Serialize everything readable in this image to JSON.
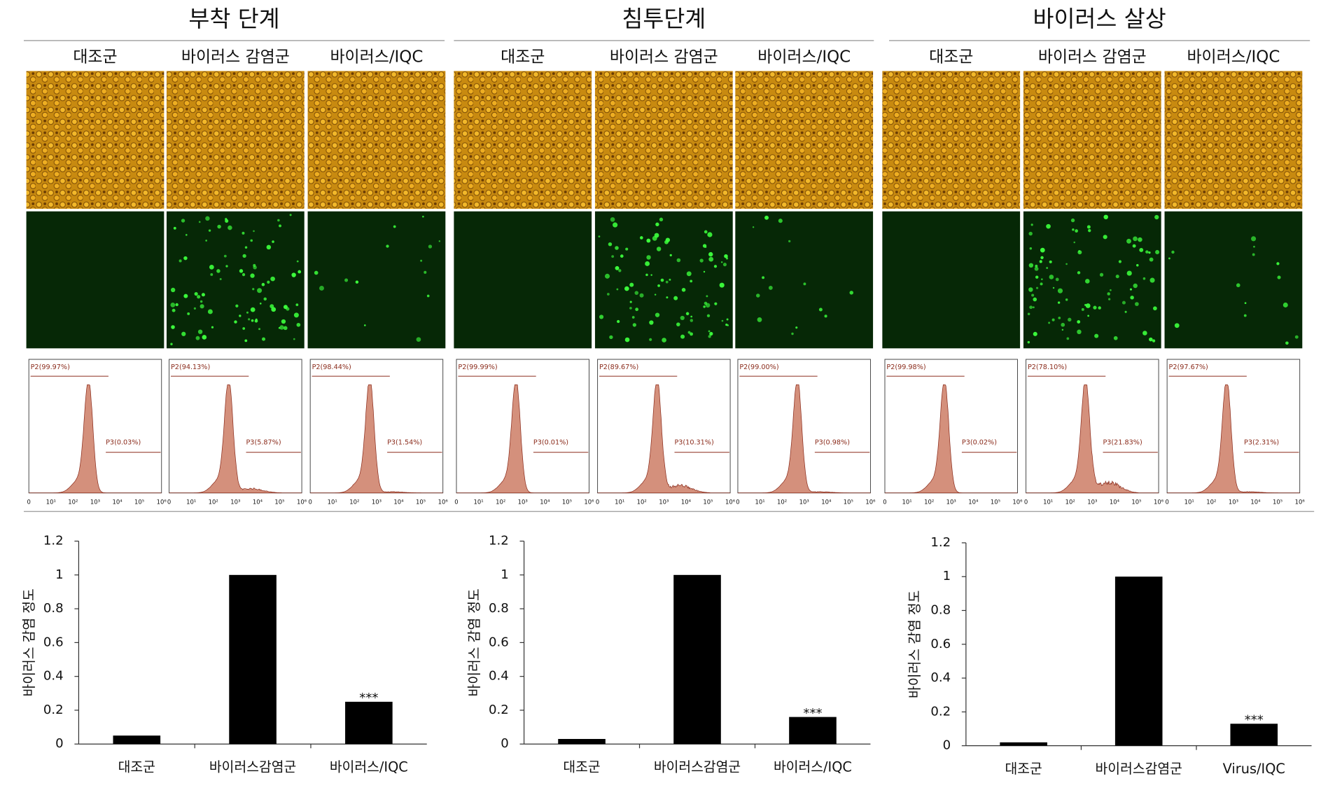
{
  "panels": [
    {
      "title": "부착 단계",
      "columns": [
        "대조군",
        "바이러스 감염군",
        "바이러스/IQC"
      ],
      "flow": [
        {
          "p2": "P2(99.97%)",
          "p3": "P3(0.03%)"
        },
        {
          "p2": "P2(94.13%)",
          "p3": "P3(5.87%)"
        },
        {
          "p2": "P2(98.44%)",
          "p3": "P3(1.54%)"
        }
      ]
    },
    {
      "title": "침투단계",
      "columns": [
        "대조군",
        "바이러스 감염군",
        "바이러스/IQC"
      ],
      "flow": [
        {
          "p2": "P2(99.99%)",
          "p3": "P3(0.01%)"
        },
        {
          "p2": "P2(89.67%)",
          "p3": "P3(10.31%)"
        },
        {
          "p2": "P2(99.00%)",
          "p3": "P3(0.98%)"
        }
      ]
    },
    {
      "title": "바이러스 살상",
      "columns": [
        "대조군",
        "바이러스 감염군",
        "바이러스/IQC"
      ],
      "flow": [
        {
          "p2": "P2(99.98%)",
          "p3": "P3(0.02%)"
        },
        {
          "p2": "P2(78.10%)",
          "p3": "P3(21.83%)"
        },
        {
          "p2": "P2(97.67%)",
          "p3": "P3(2.31%)"
        }
      ]
    }
  ],
  "flow_axis_labels": [
    "0",
    "10¹",
    "10²",
    "10³",
    "10⁴",
    "10⁵",
    "10⁶"
  ],
  "chart_data": [
    {
      "type": "bar",
      "ylabel": "바이러스 감염 정도",
      "categories": [
        "대조군",
        "바이러스감염군",
        "바이러스/IQC"
      ],
      "values": [
        0.05,
        1,
        0.25
      ],
      "color": "#000000",
      "ylim": [
        0,
        1.2
      ],
      "yticks": [
        0,
        0.2,
        0.4,
        0.6,
        0.8,
        1,
        1.2
      ],
      "annotations": [
        {
          "category": "바이러스/IQC",
          "text": "***"
        }
      ]
    },
    {
      "type": "bar",
      "ylabel": "바이러스 감염 정도",
      "categories": [
        "대조군",
        "바이러스감염군",
        "바이러스/IQC"
      ],
      "values": [
        0.03,
        1,
        0.16
      ],
      "color": "#000000",
      "ylim": [
        0,
        1.2
      ],
      "yticks": [
        0,
        0.2,
        0.4,
        0.6,
        0.8,
        1,
        1.2
      ],
      "annotations": [
        {
          "category": "바이러스/IQC",
          "text": "***"
        }
      ]
    },
    {
      "type": "bar",
      "ylabel": "바이러스 감염 정도",
      "categories": [
        "대조군",
        "바이러스감염군",
        "Virus/IQC"
      ],
      "values": [
        0.02,
        1,
        0.13
      ],
      "color": "#000000",
      "ylim": [
        0,
        1.2
      ],
      "yticks": [
        0,
        0.2,
        0.4,
        0.6,
        0.8,
        1,
        1.2
      ],
      "annotations": [
        {
          "category": "Virus/IQC",
          "text": "***"
        }
      ]
    }
  ]
}
